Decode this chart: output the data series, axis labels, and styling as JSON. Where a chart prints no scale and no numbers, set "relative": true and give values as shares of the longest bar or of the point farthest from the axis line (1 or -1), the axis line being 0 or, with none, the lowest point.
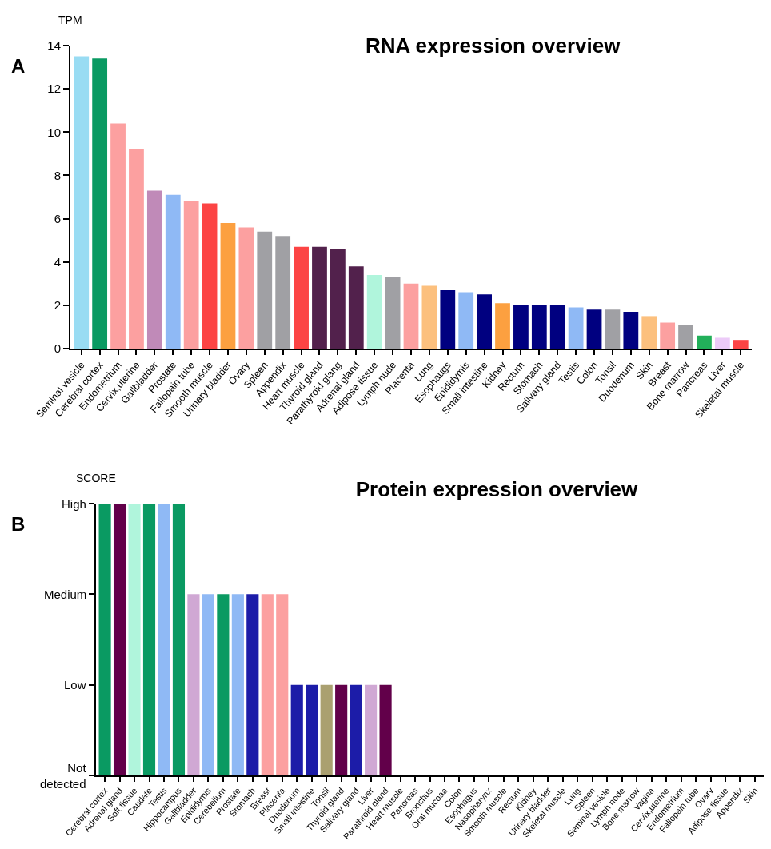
{
  "chart_data": [
    {
      "type": "bar",
      "title": "RNA expression overview",
      "ylabel": "TPM",
      "annotations": [
        "A"
      ],
      "categories": [
        "Seminal vesicle",
        "Cerebral cortex",
        "Endometrium",
        "Cervix,uterine",
        "Gallbladder",
        "Prostate",
        "Fallopain tube",
        "Smooth muscle",
        "Urinary bladder",
        "Ovary",
        "Spleen",
        "Appendix",
        "Heart muscle",
        "Thyroid gland",
        "Parathyroid glang",
        "Adrenal gland",
        "Adipose tissue",
        "Lymph nude",
        "Placenta",
        "Lung",
        "Esophaugs",
        "Epididymis",
        "Small intestine",
        "Kidney",
        "Rectum",
        "Stomach",
        "Sailvary gland",
        "Testis",
        "Colon",
        "Tonsil",
        "Duodenum",
        "Skin",
        "Breast",
        "Bone marrow",
        "Pancreas",
        "Liver",
        "Skeletal muscle"
      ],
      "values": [
        13.5,
        13.4,
        10.4,
        9.2,
        7.3,
        7.1,
        6.8,
        6.7,
        5.8,
        5.6,
        5.4,
        5.2,
        4.7,
        4.7,
        4.6,
        3.8,
        3.4,
        3.3,
        3.0,
        2.9,
        2.7,
        2.6,
        2.5,
        2.1,
        2.0,
        2.0,
        2.0,
        1.9,
        1.8,
        1.8,
        1.7,
        1.5,
        1.2,
        1.1,
        0.6,
        0.5,
        0.4
      ],
      "colors": [
        "#99dcf3",
        "#0a9a62",
        "#fca0a0",
        "#fca0a0",
        "#c08ab8",
        "#8fb9f5",
        "#fca0a0",
        "#fc4444",
        "#fca040",
        "#fca0a0",
        "#a0a0a4",
        "#a0a0a4",
        "#fc4444",
        "#52214c",
        "#52214c",
        "#52214c",
        "#b0f5dc",
        "#a0a0a4",
        "#fca0a0",
        "#fcc07e",
        "#000080",
        "#8fb9f5",
        "#000080",
        "#fca040",
        "#000080",
        "#000080",
        "#000080",
        "#8fb9f5",
        "#000080",
        "#a0a0a4",
        "#000080",
        "#fcc07e",
        "#fca0a0",
        "#a0a0a4",
        "#22b05a",
        "#eccbf8",
        "#fc4444"
      ],
      "ylim": [
        0,
        14
      ],
      "yticks": [
        0,
        2,
        4,
        6,
        8,
        10,
        12,
        14
      ],
      "grid": false
    },
    {
      "type": "bar",
      "title": "Protein expression overview",
      "ylabel": "SCORE",
      "annotations": [
        "B",
        "High",
        "Medium",
        "Low",
        "Not\ndetected"
      ],
      "relative": true,
      "categories": [
        "Cerebral cortex",
        "Adrenal gland",
        "Soft tissue",
        "Caudate",
        "Testis",
        "Hippocampus",
        "Gallbladder",
        "Epididymis",
        "Cerebellum",
        "Prostate",
        "Stomach",
        "Breast",
        "Placenta",
        "Duodenum",
        "Small intestine",
        "Tonsil",
        "Thyroid gland",
        "Salivary gland",
        "Liver",
        "Parathroid gland",
        "Heart muscle",
        "Pancreas",
        "Bronchus",
        "Oral mucoaa",
        "Colon",
        "Esophagus",
        "Nasopharynx",
        "Smooth muscle",
        "Rectum",
        "Kidney",
        "Urinary bladder",
        "Skeletal muscle",
        "Lung",
        "Spleen",
        "Seminal vesicle",
        "Lymph node",
        "Bone marrow",
        "Vagina",
        "Cervix,uterine",
        "Endometrium",
        "Fallopain tube",
        "Ovary",
        "Adipose tissue",
        "Appendix",
        "Skin"
      ],
      "values": [
        1,
        1,
        1,
        1,
        1,
        1,
        0.667,
        0.667,
        0.667,
        0.667,
        0.667,
        0.667,
        0.667,
        0.333,
        0.333,
        0.333,
        0.333,
        0.333,
        0.333,
        0.333,
        0,
        0,
        0,
        0,
        0,
        0,
        0,
        0,
        0,
        0,
        0,
        0,
        0,
        0,
        0,
        0,
        0,
        0,
        0,
        0,
        0,
        0,
        0,
        0,
        0
      ],
      "colors": [
        "#0a9a62",
        "#62004a",
        "#b0f5dc",
        "#0a9a62",
        "#8fb9f5",
        "#0a9a62",
        "#d0a8d4",
        "#8fb9f5",
        "#0a9a62",
        "#8fb9f5",
        "#1c1ca8",
        "#fca0a0",
        "#fca0a0",
        "#1c1ca8",
        "#1c1ca8",
        "#aaa070",
        "#62004a",
        "#1c1ca8",
        "#d0a8d4",
        "#62004a",
        null,
        null,
        null,
        null,
        null,
        null,
        null,
        null,
        null,
        null,
        null,
        null,
        null,
        null,
        null,
        null,
        null,
        null,
        null,
        null,
        null,
        null,
        null,
        null,
        null
      ],
      "grid": false
    }
  ]
}
